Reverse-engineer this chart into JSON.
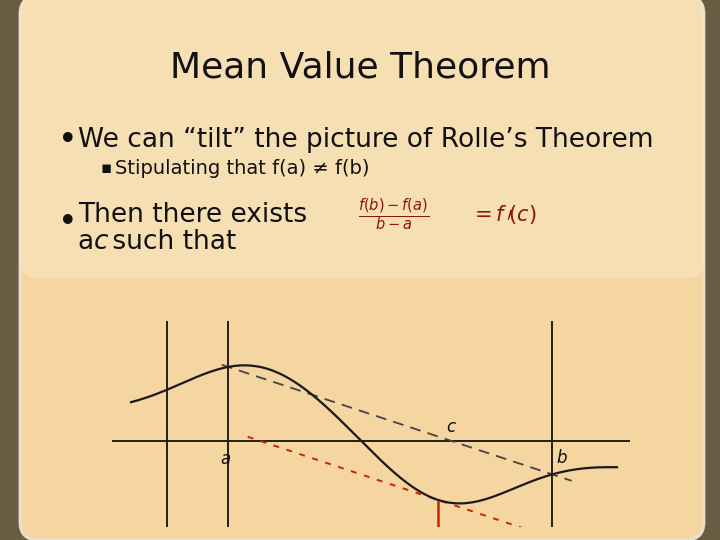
{
  "title": "Mean Value Theorem",
  "title_fontsize": 26,
  "title_color": "#111111",
  "bg_slide_top": "#F5D9A8",
  "bg_slide_bottom": "#F0C890",
  "bullet1": "We can “tilt” the picture of Rolle’s Theorem",
  "bullet1_fontsize": 19,
  "sub_bullet": "Stipulating that f(a) ≠ f(b)",
  "sub_bullet_fontsize": 14,
  "bullet2_line1": "Then there exists",
  "bullet2_line2a": "a ",
  "bullet2_line2b": "c",
  "bullet2_line2c": " such that",
  "bullet2_fontsize": 19,
  "curve_color": "#1a1a1a",
  "secant_color": "#333333",
  "tangent_color": "#cc2200",
  "axis_color": "#111111",
  "text_color": "#111111"
}
